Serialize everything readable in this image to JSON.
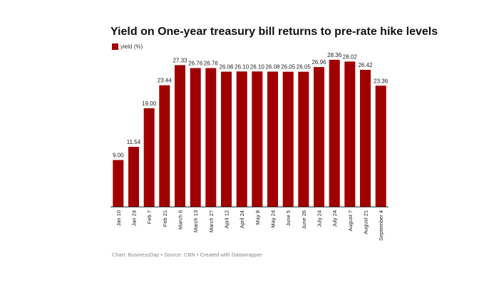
{
  "chart_data": {
    "type": "bar",
    "title": "Yield on One-year treasury bill returns to pre-rate hike levels",
    "legend": {
      "label": "yield (%)",
      "placement": "top-left"
    },
    "categories": [
      "Jan 10",
      "Jan 24",
      "Feb 7",
      "Feb 21",
      "March 6",
      "March 13",
      "March 27",
      "April 12",
      "April 24",
      "May 8",
      "May 24",
      "June 5",
      "June 26",
      "July 24",
      "July 24",
      "August 7",
      "August 21",
      "September 4"
    ],
    "series": [
      {
        "name": "yield (%)",
        "values": [
          9.0,
          11.54,
          19.0,
          23.44,
          27.33,
          26.76,
          26.76,
          26.06,
          26.1,
          26.1,
          26.08,
          26.05,
          26.05,
          26.96,
          28.36,
          28.02,
          26.42,
          23.36
        ],
        "value_labels": [
          "9.00",
          "11.54",
          "19.00",
          "23.44",
          "27.33",
          "26.76",
          "26.76",
          "26.06",
          "26.10",
          "26.10",
          "26.08",
          "26.05",
          "26.05",
          "26.96",
          "28.36",
          "28.02",
          "26.42",
          "23.36"
        ]
      }
    ],
    "ylim": [
      0,
      30
    ],
    "color": "#a00000",
    "grid": false,
    "xlabel": "",
    "ylabel": ""
  },
  "footer": "Chart: BusinessDay • Source: CBN • Created with Datawrapper"
}
